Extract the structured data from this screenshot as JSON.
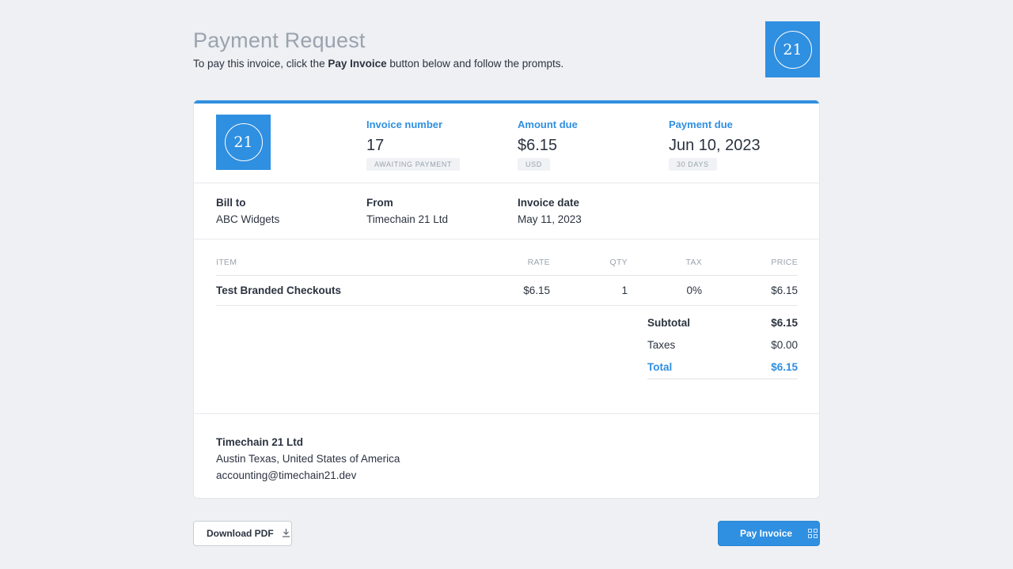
{
  "header": {
    "title": "Payment Request",
    "subtitle_pre": "To pay this invoice, click the ",
    "subtitle_bold": "Pay Invoice",
    "subtitle_post": " button below and follow the prompts.",
    "logo_text": "21"
  },
  "invoice": {
    "logo_text": "21",
    "number_label": "Invoice number",
    "number": "17",
    "status": "AWAITING PAYMENT",
    "amount_label": "Amount due",
    "amount": "$6.15",
    "currency": "USD",
    "due_label": "Payment due",
    "due_date": "Jun 10, 2023",
    "due_terms": "30 DAYS"
  },
  "parties": {
    "bill_to_label": "Bill to",
    "bill_to": "ABC Widgets",
    "from_label": "From",
    "from": "Timechain 21 Ltd",
    "date_label": "Invoice date",
    "date": "May 11, 2023"
  },
  "items": {
    "headers": {
      "item": "ITEM",
      "rate": "RATE",
      "qty": "QTY",
      "tax": "TAX",
      "price": "PRICE"
    },
    "rows": [
      {
        "name": "Test Branded Checkouts",
        "rate": "$6.15",
        "qty": "1",
        "tax": "0%",
        "price": "$6.15"
      }
    ]
  },
  "totals": {
    "subtotal_label": "Subtotal",
    "subtotal": "$6.15",
    "taxes_label": "Taxes",
    "taxes": "$0.00",
    "total_label": "Total",
    "total": "$6.15"
  },
  "company": {
    "name": "Timechain 21 Ltd",
    "location": "Austin Texas, United States of America",
    "email": "accounting@timechain21.dev"
  },
  "actions": {
    "download_label": "Download PDF",
    "pay_label": "Pay Invoice"
  },
  "colors": {
    "accent": "#2f8fe0",
    "background": "#eef0f3"
  },
  "icons": {
    "download": "download-icon",
    "qr": "qr-code-icon"
  }
}
